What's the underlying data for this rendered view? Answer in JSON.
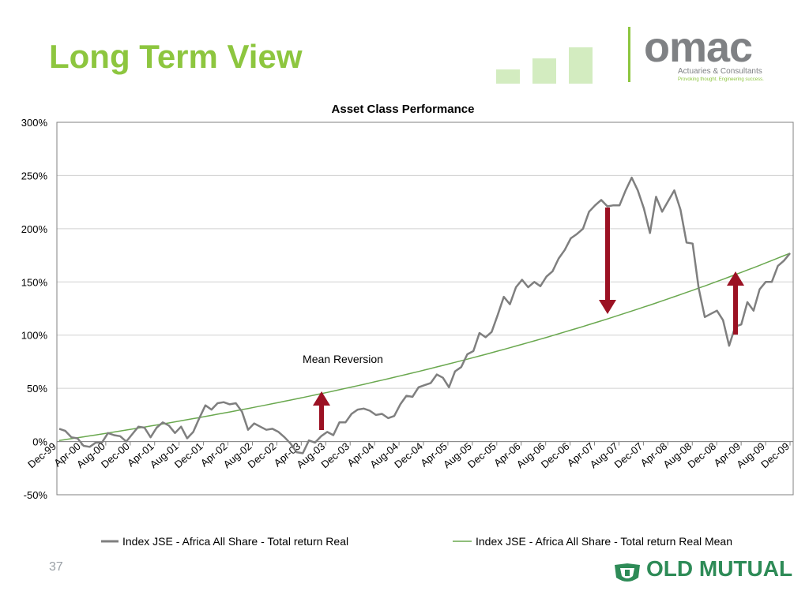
{
  "slide": {
    "title": "Long Term View",
    "page_number": "37",
    "colors": {
      "title": "#8dc63f",
      "accent_green": "#8dc63f",
      "series_real": "#7f7f7f",
      "series_mean": "#6aa84f",
      "arrow": "#9b1123"
    }
  },
  "logo": {
    "name": "omac",
    "subtitle": "Actuaries & Consultants",
    "tagline": "Provoking thought. Engineering success."
  },
  "footer_logo": {
    "name": "OLD MUTUAL",
    "icon": "old-mutual-crest-icon"
  },
  "chart_data": {
    "type": "line",
    "title": "Asset Class Performance",
    "ylim": [
      -50,
      300
    ],
    "yticks": [
      "300%",
      "250%",
      "200%",
      "150%",
      "100%",
      "50%",
      "0%",
      "-50%"
    ],
    "ytick_values": [
      300,
      250,
      200,
      150,
      100,
      50,
      0,
      -50
    ],
    "xticks": [
      "Dec-99",
      "Apr-00",
      "Aug-00",
      "Dec-00",
      "Apr-01",
      "Aug-01",
      "Dec-01",
      "Apr-02",
      "Aug-02",
      "Dec-02",
      "Apr-03",
      "Aug-03",
      "Dec-03",
      "Apr-04",
      "Aug-04",
      "Dec-04",
      "Apr-05",
      "Aug-05",
      "Dec-05",
      "Apr-06",
      "Aug-06",
      "Dec-06",
      "Apr-07",
      "Aug-07",
      "Dec-07",
      "Apr-08",
      "Aug-08",
      "Dec-08",
      "Apr-09",
      "Aug-09",
      "Dec-09"
    ],
    "grid": true,
    "legend_placement": "bottom",
    "series": [
      {
        "name": "Index JSE - Africa All Share - Total return Real",
        "color": "#7f7f7f",
        "values": [
          12,
          10,
          4,
          3,
          -4,
          -5,
          -1,
          -1,
          8,
          6,
          5,
          0,
          7,
          14,
          13,
          4,
          13,
          18,
          15,
          8,
          14,
          3,
          9,
          22,
          34,
          30,
          36,
          37,
          35,
          36,
          28,
          11,
          17,
          14,
          11,
          12,
          9,
          4,
          -2,
          -10,
          -11,
          1,
          -1,
          5,
          9,
          6,
          18,
          18,
          26,
          30,
          31,
          29,
          25,
          26,
          22,
          24,
          35,
          43,
          42,
          51,
          53,
          55,
          63,
          60,
          51,
          66,
          70,
          82,
          85,
          102,
          98,
          103,
          119,
          136,
          129,
          145,
          152,
          145,
          150,
          146,
          155,
          160,
          172,
          180,
          191,
          195,
          200,
          216,
          222,
          227,
          221,
          222,
          222,
          236,
          248,
          236,
          219,
          196,
          230,
          216,
          226,
          236,
          218,
          187,
          186,
          144,
          117,
          120,
          123,
          114,
          90,
          108,
          110,
          131,
          123,
          143,
          150,
          150,
          165,
          170,
          177
        ]
      },
      {
        "name": "Index JSE - Africa All Share - Total return Real Mean",
        "color": "#6aa84f",
        "start": 1,
        "end": 177
      }
    ],
    "annotations": [
      {
        "text": "Mean Reversion"
      }
    ]
  }
}
